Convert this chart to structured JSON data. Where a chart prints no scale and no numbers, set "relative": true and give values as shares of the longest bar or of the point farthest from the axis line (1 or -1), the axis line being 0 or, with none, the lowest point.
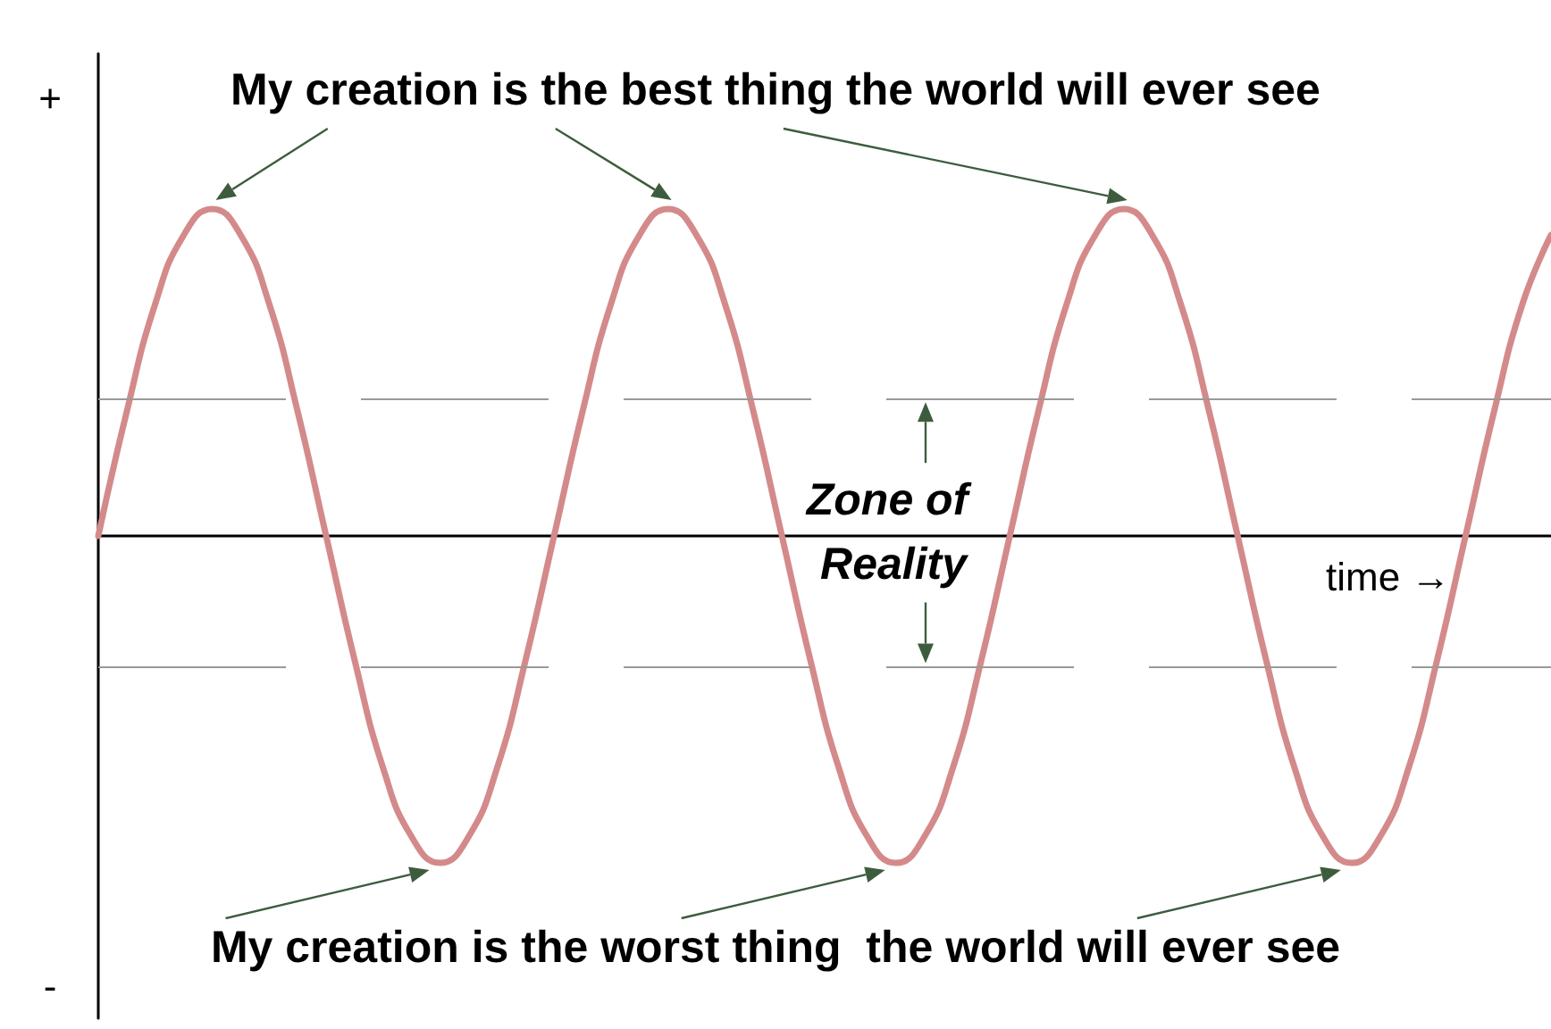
{
  "chart_data": {
    "type": "line",
    "relative": true,
    "xlabel": "time →",
    "categories": [
      null,
      null,
      null,
      null,
      null,
      null,
      null,
      null,
      null,
      null,
      null,
      null,
      null,
      null,
      null,
      null,
      null,
      null,
      null,
      null,
      null,
      null,
      null,
      null,
      null,
      null,
      null,
      null,
      null,
      null,
      null,
      null,
      null,
      null,
      null,
      null,
      null,
      null,
      null,
      null,
      null,
      null,
      null,
      null,
      null,
      null,
      null,
      null,
      null,
      null,
      null,
      null
    ],
    "series": [
      {
        "color": "#d48a8a",
        "values": [
          0,
          0.38,
          0.71,
          0.92,
          1,
          0.92,
          0.71,
          0.38,
          0,
          -0.38,
          -0.71,
          -0.92,
          -1,
          -0.92,
          -0.71,
          -0.38,
          0,
          0.38,
          0.71,
          0.92,
          1,
          0.92,
          0.71,
          0.38,
          0,
          -0.38,
          -0.71,
          -0.92,
          -1,
          -0.92,
          -0.71,
          -0.38,
          0,
          0.38,
          0.71,
          0.92,
          1,
          0.92,
          0.71,
          0.38,
          0,
          -0.38,
          -0.71,
          -0.92,
          -1,
          -0.92,
          -0.71,
          -0.38,
          0,
          0.38,
          0.71,
          0.92
        ]
      }
    ],
    "ref_lines": [
      {
        "axis": "y",
        "value": 0.42,
        "color": "#999999",
        "line_style": "dashed"
      },
      {
        "axis": "y",
        "value": -0.4,
        "color": "#999999",
        "line_style": "dashed"
      }
    ],
    "annotations": [
      "My creation is the best thing the world will ever see",
      "My creation is the worst thing  the world will ever see",
      "Zone of Reality",
      "+",
      "-"
    ],
    "marker": "none",
    "line_style": "solid"
  }
}
